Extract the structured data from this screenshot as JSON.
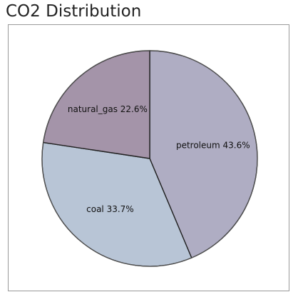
{
  "chart_data": {
    "type": "pie",
    "title": "CO2 Distribution",
    "slices": [
      {
        "name": "petroleum",
        "value": 43.6,
        "label": "petroleum 43.6%",
        "color": "#afadc3"
      },
      {
        "name": "coal",
        "value": 33.7,
        "label": "coal 33.7%",
        "color": "#b8c5d6"
      },
      {
        "name": "natural_gas",
        "value": 22.6,
        "label": "natural_gas 22.6%",
        "color": "#a494a9"
      }
    ],
    "start_angle": "12 o'clock",
    "direction": "clockwise",
    "legend": "none",
    "slice_border_color": "#222222"
  }
}
